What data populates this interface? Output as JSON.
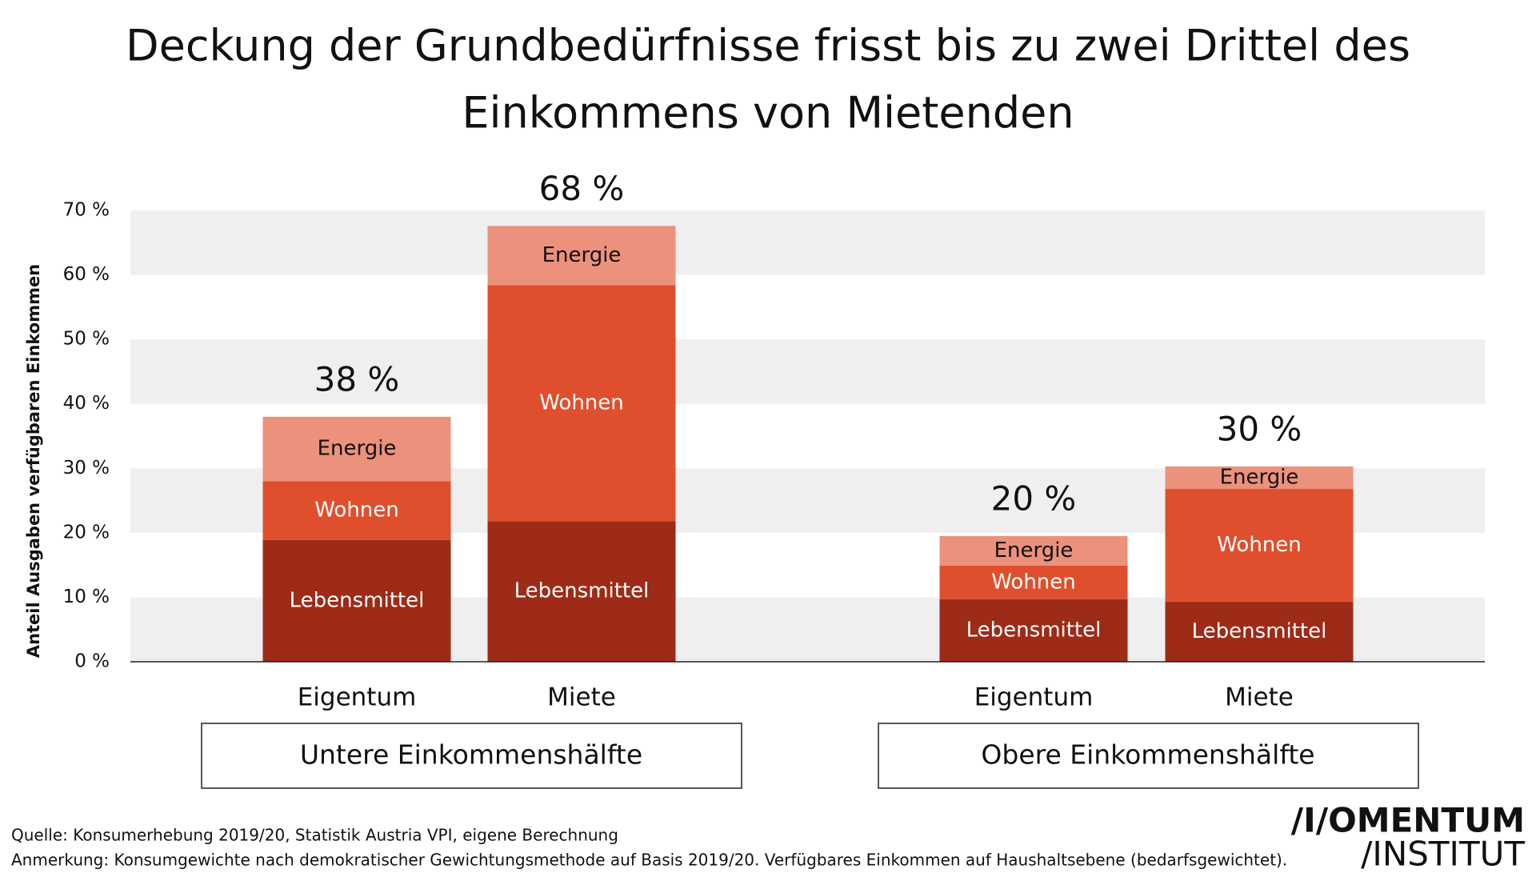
{
  "chart_data": {
    "type": "stacked_bar",
    "title": [
      "Deckung der Grundbedürfnisse frisst bis zu zwei Drittel des",
      "Einkommens von Mietenden"
    ],
    "y_label": "Anteil Ausgaben verfügbaren Einkommen",
    "categories": [
      "Eigentum",
      "Miete",
      "Eigentum",
      "Miete"
    ],
    "groups": [
      "Untere Einkommenshälfte",
      "Obere Einkommenshälfte"
    ],
    "series": [
      {
        "name": "Lebensmittel",
        "color": "#9e2b17",
        "label_color": "#ffffff",
        "values": [
          18.9,
          21.8,
          9.7,
          9.3
        ]
      },
      {
        "name": "Wohnen",
        "color": "#e04f2d",
        "label_color": "#ffffff",
        "values": [
          9.1,
          36.6,
          5.2,
          17.5
        ]
      },
      {
        "name": "Energie",
        "color": "#ec917c",
        "label_color": "#111111",
        "values": [
          10.0,
          9.2,
          4.6,
          3.5
        ]
      }
    ],
    "totals": {
      "values": [
        38,
        68,
        20,
        30
      ],
      "value_labels": [
        "38 %",
        "68 %",
        "20 %",
        "30 %"
      ]
    },
    "ylim": [
      0,
      70
    ],
    "yticks": [
      {
        "value": 0,
        "label": "0 %"
      },
      {
        "value": 10,
        "label": "10 %"
      },
      {
        "value": 20,
        "label": "20 %"
      },
      {
        "value": 30,
        "label": "30 %"
      },
      {
        "value": 40,
        "label": "40 %"
      },
      {
        "value": 50,
        "label": "50 %"
      },
      {
        "value": 60,
        "label": "60 %"
      },
      {
        "value": 70,
        "label": "70 %"
      }
    ],
    "grid": "bands",
    "source": "Quelle: Konsumerhebung 2019/20, Statistik Austria VPI, eigene Berechnung",
    "note": "Anmerkung: Konsumgewichte nach demokratischer Gewichtungsmethode auf Basis 2019/20. Verfügbares Einkommen auf Haushaltsebene (bedarfsgewichtet).",
    "logo": [
      "/I/OMENTUM",
      "/INSTITUT"
    ]
  }
}
